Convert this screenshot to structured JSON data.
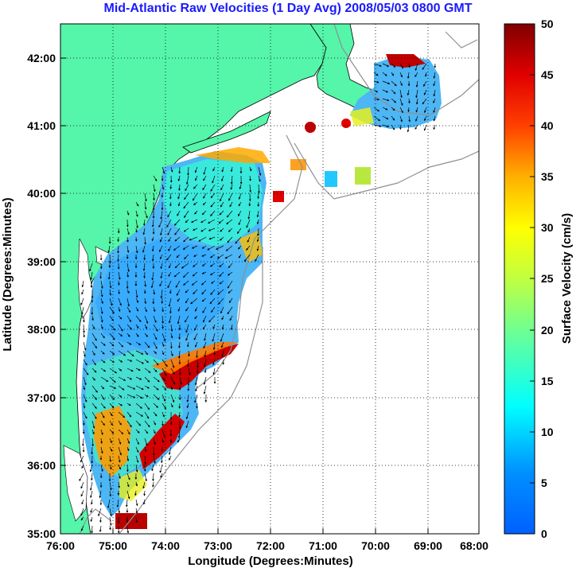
{
  "title": "Mid-Atlantic Raw Velocities (1 Day Avg) 2008/05/03 0800 GMT",
  "map": {
    "xlabel": "Longitude (Degrees:Minutes)",
    "ylabel": "Latitude (Degrees:Minutes)",
    "x_ticks": [
      "76:00",
      "75:00",
      "74:00",
      "73:00",
      "72:00",
      "71:00",
      "70:00",
      "69:00",
      "68:00"
    ],
    "y_ticks": [
      "42:00",
      "41:00",
      "40:00",
      "39:00",
      "38:00",
      "37:00",
      "36:00",
      "35:00"
    ],
    "lon_range": [
      -76,
      -68
    ],
    "lat_range": [
      35,
      42.5
    ],
    "land_color": "#55f5aa",
    "ocean_color": "#ffffff",
    "grid": "dotted"
  },
  "colorbar": {
    "label": "Surface Velocity (cm/s)",
    "ticks": [
      "50",
      "45",
      "40",
      "35",
      "30",
      "25",
      "20",
      "15",
      "10",
      "5",
      "0"
    ],
    "range": [
      0,
      50
    ],
    "colormap": "jet"
  }
}
